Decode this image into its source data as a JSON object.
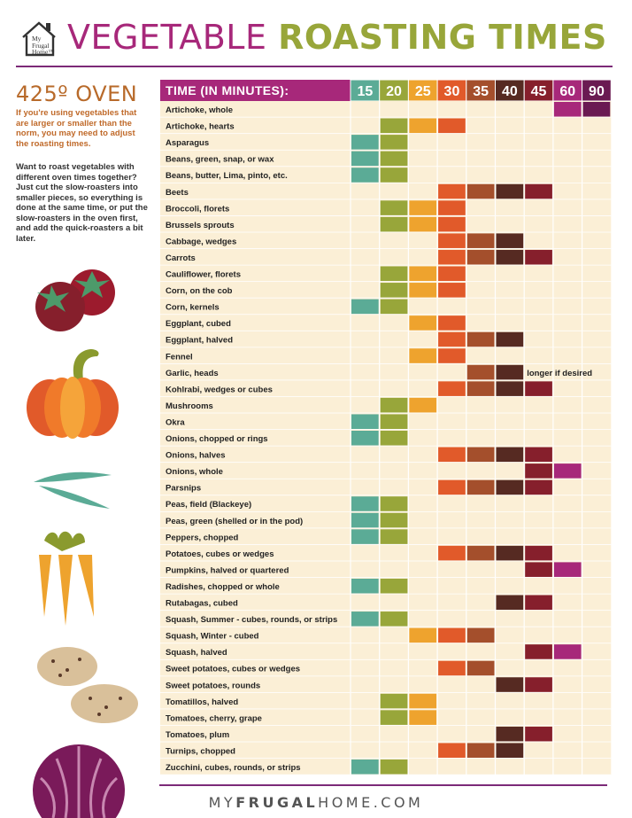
{
  "header": {
    "logo_text": "My Frugal Home",
    "title_part1": "VEGETABLE",
    "title_part2": "ROASTING TIMES"
  },
  "sidebar": {
    "oven_label": "425º OVEN",
    "note1": "If you're using vegetables that are larger or smaller than the norm, you may need to adjust the roasting times.",
    "note2": "Want to roast vegetables with different oven times together? Just cut the slow-roasters into smaller pieces, so everything is done at the same time, or put the slow-roasters in the oven first, and add the quick-roasters a bit later."
  },
  "footer": {
    "text_light1": "MY",
    "text_bold": "FRUGAL",
    "text_light2": "HOME.COM"
  },
  "colors": {
    "15": "#5bab96",
    "20": "#98a63a",
    "25": "#eea32e",
    "30": "#e15a2a",
    "35": "#a44f2c",
    "40": "#562a22",
    "45": "#861f2c",
    "60": "#a7287a",
    "90": "#6a1a52",
    "header_bg": "#a7287a",
    "row_bg": "#fbefd6",
    "grid_line": "#ffffff"
  },
  "chart_data": {
    "type": "table",
    "title": "VEGETABLE ROASTING TIMES",
    "header_label": "TIME (IN MINUTES):",
    "times": [
      15,
      20,
      25,
      30,
      35,
      40,
      45,
      60,
      90
    ],
    "rows": [
      {
        "name": "Artichoke, whole",
        "times": [
          60,
          90
        ]
      },
      {
        "name": "Artichoke, hearts",
        "times": [
          20,
          25,
          30
        ]
      },
      {
        "name": "Asparagus",
        "times": [
          15,
          20
        ]
      },
      {
        "name": "Beans, green, snap, or wax",
        "times": [
          15,
          20
        ]
      },
      {
        "name": "Beans, butter, Lima, pinto, etc.",
        "times": [
          15,
          20
        ]
      },
      {
        "name": "Beets",
        "times": [
          30,
          35,
          40,
          45
        ]
      },
      {
        "name": "Broccoli, florets",
        "times": [
          20,
          25,
          30
        ]
      },
      {
        "name": "Brussels sprouts",
        "times": [
          20,
          25,
          30
        ]
      },
      {
        "name": "Cabbage, wedges",
        "times": [
          30,
          35,
          40
        ]
      },
      {
        "name": "Carrots",
        "times": [
          30,
          35,
          40,
          45
        ]
      },
      {
        "name": "Cauliflower, florets",
        "times": [
          20,
          25,
          30
        ]
      },
      {
        "name": "Corn, on the cob",
        "times": [
          20,
          25,
          30
        ]
      },
      {
        "name": "Corn, kernels",
        "times": [
          15,
          20
        ]
      },
      {
        "name": "Eggplant, cubed",
        "times": [
          25,
          30
        ]
      },
      {
        "name": "Eggplant, halved",
        "times": [
          30,
          35,
          40
        ]
      },
      {
        "name": "Fennel",
        "times": [
          25,
          30
        ]
      },
      {
        "name": "Garlic, heads",
        "times": [
          35,
          40
        ],
        "note": "longer if desired"
      },
      {
        "name": "Kohlrabi, wedges or cubes",
        "times": [
          30,
          35,
          40,
          45
        ]
      },
      {
        "name": "Mushrooms",
        "times": [
          20,
          25
        ]
      },
      {
        "name": "Okra",
        "times": [
          15,
          20
        ]
      },
      {
        "name": "Onions, chopped or rings",
        "times": [
          15,
          20
        ]
      },
      {
        "name": "Onions, halves",
        "times": [
          30,
          35,
          40,
          45
        ]
      },
      {
        "name": "Onions, whole",
        "times": [
          45,
          60
        ]
      },
      {
        "name": "Parsnips",
        "times": [
          30,
          35,
          40,
          45
        ]
      },
      {
        "name": "Peas, field (Blackeye)",
        "times": [
          15,
          20
        ]
      },
      {
        "name": "Peas, green (shelled or in the pod)",
        "times": [
          15,
          20
        ]
      },
      {
        "name": "Peppers, chopped",
        "times": [
          15,
          20
        ]
      },
      {
        "name": "Potatoes, cubes or wedges",
        "times": [
          30,
          35,
          40,
          45
        ]
      },
      {
        "name": "Pumpkins, halved or quartered",
        "times": [
          45,
          60
        ]
      },
      {
        "name": "Radishes, chopped or whole",
        "times": [
          15,
          20
        ]
      },
      {
        "name": "Rutabagas, cubed",
        "times": [
          40,
          45
        ]
      },
      {
        "name": "Squash, Summer - cubes, rounds, or strips",
        "times": [
          15,
          20
        ]
      },
      {
        "name": "Squash, Winter - cubed",
        "times": [
          25,
          30,
          35
        ]
      },
      {
        "name": "Squash, halved",
        "times": [
          45,
          60
        ]
      },
      {
        "name": "Sweet potatoes, cubes or wedges",
        "times": [
          30,
          35
        ]
      },
      {
        "name": "Sweet potatoes, rounds",
        "times": [
          40,
          45
        ]
      },
      {
        "name": "Tomatillos, halved",
        "times": [
          20,
          25
        ]
      },
      {
        "name": "Tomatoes, cherry, grape",
        "times": [
          20,
          25
        ]
      },
      {
        "name": "Tomatoes, plum",
        "times": [
          40,
          45
        ]
      },
      {
        "name": "Turnips, chopped",
        "times": [
          30,
          35,
          40
        ]
      },
      {
        "name": "Zucchini, cubes, rounds, or strips",
        "times": [
          15,
          20
        ]
      }
    ]
  }
}
